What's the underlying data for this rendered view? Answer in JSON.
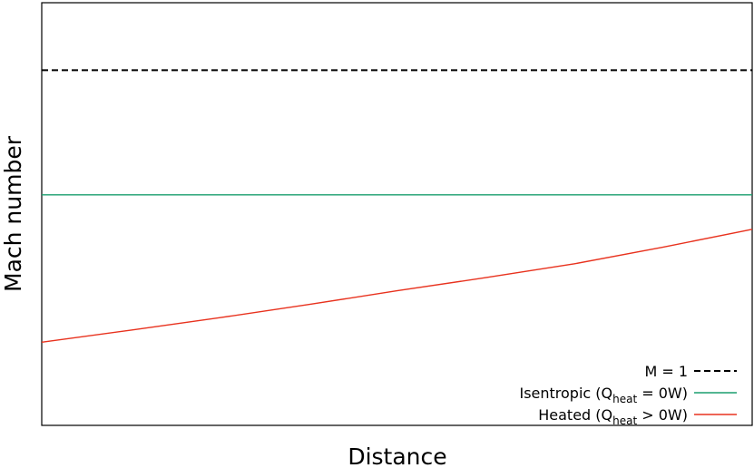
{
  "chart_data": {
    "type": "line",
    "x_label": "Distance",
    "y_label": "Mach number",
    "ylim": [
      0,
      1.19
    ],
    "series": [
      {
        "name": [
          "M = 1"
        ],
        "color": "#000000",
        "dash": true,
        "values": [
          1,
          1
        ]
      },
      {
        "name": [
          "Isentropic (Q",
          "heat",
          " = 0W)"
        ],
        "color": "#1a9e6e",
        "dash": false,
        "values": [
          0.649,
          0.649
        ]
      },
      {
        "name": [
          "Heated (Q",
          "heat",
          " > 0W)"
        ],
        "color": "#e8321e",
        "dash": false,
        "values": [
          0.234,
          0.268,
          0.303,
          0.34,
          0.379,
          0.416,
          0.455,
          0.502,
          0.552
        ]
      }
    ],
    "legend": "lower right"
  }
}
